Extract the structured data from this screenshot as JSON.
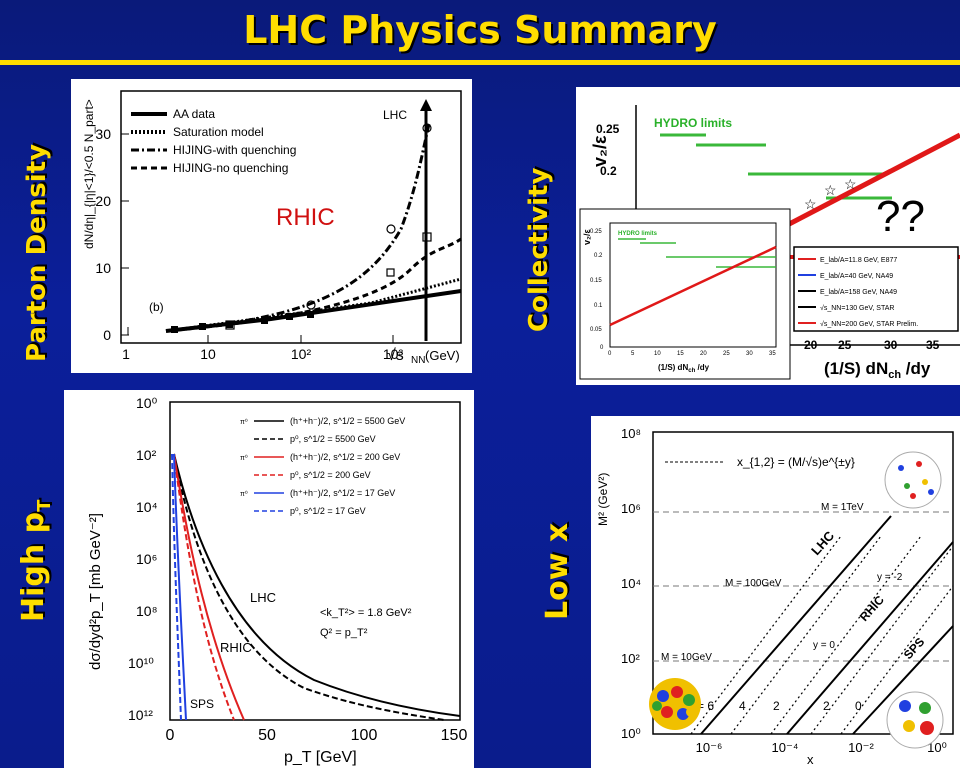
{
  "slide": {
    "title": "LHC Physics Summary"
  },
  "labels": {
    "parton_density": "Parton Density",
    "collectivity": "Collectivity",
    "high_pt_main": "High p",
    "high_pt_sub": "T",
    "low_x": "Low x"
  },
  "panel_tl": {
    "ylabel": "dN/dη|_{|η|<1}/<0.5 N_part>",
    "xlabel": "(GeV)",
    "sqrt_sym": "√s",
    "nn_sub": "NN",
    "legend": [
      "AA data",
      "Saturation model",
      "HIJING-with quenching",
      "HIJING-no quenching"
    ],
    "lhc": "LHC",
    "rhic": "RHIC",
    "tag": "(b)",
    "yticks": [
      "0",
      "10",
      "20",
      "30"
    ],
    "xticks": [
      "1",
      "10",
      "10²",
      "10³"
    ]
  },
  "panel_tr": {
    "ylabel": "v₂/ε",
    "hydro": "HYDRO  limits",
    "qq": "??",
    "xlabel": "(1/S) dN",
    "xlabel_sub": "ch",
    "xlabel_end": " /dy",
    "yticks": [
      "0.25",
      "0.2",
      "0.15"
    ],
    "xticks": [
      "20",
      "25",
      "30",
      "35"
    ],
    "legend": [
      "E_lab/A=11.8 GeV, E877",
      "E_lab/A=40 GeV, NA49",
      "E_lab/A=158 GeV, NA49",
      "√s_NN=130 GeV, STAR",
      "√s_NN=200 GeV, STAR Prelim."
    ],
    "inset": {
      "ylabel": "v₂/ε",
      "hydro": "HYDRO  limits",
      "xlabel": "(1/S) dN",
      "xlabel_sub": "ch",
      "xlabel_end": " /dy",
      "yticks": [
        "0.25",
        "0.2",
        "0.15",
        "0.1",
        "0.05",
        "0"
      ],
      "xticks": [
        "0",
        "5",
        "10",
        "15",
        "20",
        "25",
        "30",
        "35"
      ]
    }
  },
  "panel_bl": {
    "ylabel": "dσ/dyd²p_T [mb GeV⁻²]",
    "xlabel": "p_T [GeV]",
    "yticks": [
      "10⁰",
      "10²",
      "10⁴",
      "10⁶",
      "10⁸",
      "10¹⁰",
      "10¹²"
    ],
    "xticks": [
      "0",
      "50",
      "100",
      "150"
    ],
    "legend": [
      {
        "tag": "π⁰",
        "text": "(h⁺+h⁻)/2, s^1/2 = 5500 GeV",
        "color": "#000000",
        "dash": false
      },
      {
        "tag": "",
        "text": "p⁰, s^1/2 = 5500 GeV",
        "color": "#000000",
        "dash": true
      },
      {
        "tag": "π⁰",
        "text": "(h⁺+h⁻)/2, s^1/2 = 200 GeV",
        "color": "#e02020",
        "dash": false
      },
      {
        "tag": "",
        "text": "p⁰, s^1/2 = 200 GeV",
        "color": "#e02020",
        "dash": true
      },
      {
        "tag": "π⁰",
        "text": "(h⁺+h⁻)/2, s^1/2 = 17 GeV",
        "color": "#2040e0",
        "dash": false
      },
      {
        "tag": "",
        "text": "p⁰, s^1/2 = 17 GeV",
        "color": "#2040e0",
        "dash": true
      }
    ],
    "kt": "<k_T²> = 1.8 GeV²",
    "q2": "Q² = p_T²",
    "lhc": "LHC",
    "rhic": "RHIC",
    "sps": "SPS"
  },
  "panel_br": {
    "ylabel": "M²  (GeV²)",
    "xlabel": "x",
    "formula": "x_{1,2} = (M/√s)e^{±y}",
    "yticks": [
      "10⁸",
      "10⁶",
      "10⁴",
      "10²",
      "10⁰"
    ],
    "xticks": [
      "10⁻⁶",
      "10⁻⁴",
      "10⁻²",
      "10⁰"
    ],
    "m1tev": "M = 1TeV",
    "m100": "M = 100GeV",
    "m10": "M = 10GeV",
    "lhc": "LHC",
    "rhic": "RHIC",
    "sps": "SPS",
    "ym2": "y = -2",
    "y0": "y = 0",
    "ylabels": [
      "= 6",
      "4",
      "2",
      "2",
      "0"
    ]
  }
}
